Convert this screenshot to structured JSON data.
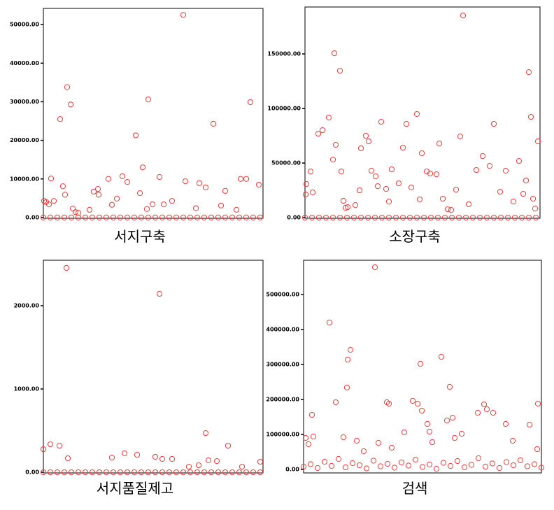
{
  "chart_data": [
    {
      "type": "scatter",
      "title": "서지구축",
      "color": "#f03c3c",
      "x": [
        1,
        4,
        8,
        11,
        15,
        24,
        28,
        31,
        34,
        39,
        42,
        46,
        50,
        66,
        72,
        78,
        79,
        93,
        98,
        105,
        113,
        120,
        132,
        138,
        142,
        148,
        150,
        156,
        166,
        172,
        184,
        200,
        203,
        223,
        232,
        243,
        260,
        282,
        290,
        296,
        308,
        276,
        254,
        218,
        0,
        10,
        20,
        30,
        40,
        50,
        60,
        70,
        80,
        90,
        100,
        110,
        120,
        130,
        140,
        150,
        160,
        170,
        180,
        190,
        200,
        210,
        220,
        230,
        240,
        250,
        260,
        270,
        280,
        290,
        300,
        310
      ],
      "values": [
        4300,
        4000,
        3400,
        10100,
        4300,
        25500,
        8100,
        5900,
        33800,
        29300,
        2300,
        1400,
        1200,
        2000,
        6700,
        7400,
        5900,
        10000,
        3300,
        4900,
        10700,
        9200,
        21300,
        6300,
        13000,
        2200,
        30600,
        3400,
        10500,
        3400,
        4300,
        52500,
        9400,
        8900,
        7800,
        24300,
        6900,
        10000,
        10000,
        29900,
        8500,
        2000,
        3100,
        2400,
        0,
        0,
        0,
        0,
        0,
        0,
        0,
        0,
        0,
        0,
        0,
        0,
        0,
        0,
        0,
        0,
        0,
        0,
        0,
        0,
        0,
        0,
        0,
        0,
        0,
        0,
        0,
        0,
        0,
        0,
        0,
        0
      ],
      "xlim": [
        0,
        314
      ],
      "ylim": [
        -200,
        54200
      ],
      "yticks": [
        {
          "value": 0,
          "label": "0.00"
        },
        {
          "value": 10000,
          "label": "10000.00"
        },
        {
          "value": 20000,
          "label": "20000.00"
        },
        {
          "value": 30000,
          "label": "30000.00"
        },
        {
          "value": 40000,
          "label": "40000.00"
        },
        {
          "value": 50000,
          "label": "50000.00"
        }
      ]
    },
    {
      "type": "scatter",
      "title": "소장구축",
      "color": "#f03c3c",
      "x": [
        1,
        2,
        8,
        11,
        19,
        25,
        34,
        40,
        42,
        44,
        50,
        52,
        55,
        58,
        61,
        72,
        78,
        80,
        87,
        91,
        95,
        101,
        104,
        109,
        116,
        120,
        124,
        134,
        140,
        145,
        152,
        160,
        164,
        167,
        174,
        179,
        188,
        192,
        197,
        204,
        209,
        216,
        222,
        226,
        234,
        245,
        254,
        264,
        270,
        279,
        287,
        298,
        306,
        316,
        320,
        323,
        326,
        333,
        329,
        312,
        0,
        10,
        20,
        30,
        40,
        50,
        60,
        70,
        80,
        90,
        100,
        110,
        120,
        130,
        140,
        150,
        160,
        170,
        180,
        190,
        200,
        210,
        220,
        230,
        240,
        250,
        260,
        270,
        280,
        290,
        300,
        310,
        320,
        330
      ],
      "values": [
        21200,
        30800,
        42300,
        23100,
        76900,
        80100,
        91700,
        53200,
        150600,
        66700,
        134600,
        42300,
        15400,
        9000,
        9600,
        11500,
        25000,
        63500,
        75000,
        69900,
        43000,
        37800,
        28800,
        87800,
        26300,
        14700,
        44200,
        31400,
        64100,
        85900,
        27600,
        94900,
        16700,
        59000,
        42300,
        40400,
        39700,
        67900,
        17300,
        7700,
        7000,
        25600,
        74400,
        185200,
        12200,
        43600,
        56400,
        47400,
        85900,
        23700,
        42900,
        14700,
        51900,
        34000,
        133300,
        92300,
        17300,
        69900,
        8300,
        21800,
        0,
        0,
        0,
        0,
        0,
        0,
        0,
        0,
        0,
        0,
        0,
        0,
        0,
        0,
        0,
        0,
        0,
        0,
        0,
        0,
        0,
        0,
        0,
        0,
        0,
        0,
        0,
        0,
        0,
        0,
        0,
        0,
        0,
        0
      ],
      "xlim": [
        0,
        336
      ],
      "ylim": [
        -600,
        193000
      ],
      "yticks": [
        {
          "value": 0,
          "label": "0.00"
        },
        {
          "value": 50000,
          "label": "50000.00"
        },
        {
          "value": 100000,
          "label": "100000.00"
        },
        {
          "value": 150000,
          "label": "150000.00"
        }
      ]
    },
    {
      "type": "scatter",
      "title": "서지품질제고",
      "color": "#f03c3c",
      "x": [
        0,
        10,
        23,
        33,
        35,
        98,
        116,
        134,
        160,
        166,
        170,
        184,
        208,
        222,
        232,
        236,
        248,
        264,
        284,
        310,
        0,
        10,
        20,
        30,
        40,
        50,
        60,
        70,
        80,
        90,
        100,
        110,
        120,
        130,
        140,
        150,
        160,
        170,
        180,
        190,
        200,
        210,
        220,
        230,
        240,
        250,
        260,
        270,
        280,
        290,
        300,
        310
      ],
      "values": [
        277,
        336,
        319,
        2454,
        168,
        176,
        227,
        210,
        185,
        2143,
        160,
        160,
        67,
        84,
        470,
        143,
        134,
        319,
        67,
        126,
        0,
        0,
        0,
        0,
        0,
        0,
        0,
        0,
        0,
        0,
        0,
        0,
        0,
        0,
        0,
        0,
        0,
        0,
        0,
        0,
        0,
        0,
        0,
        0,
        0,
        0,
        0,
        0,
        0,
        0,
        0,
        0
      ],
      "xlim": [
        0,
        314
      ],
      "ylim": [
        -8,
        2546
      ],
      "yticks": [
        {
          "value": 0,
          "label": "0.00"
        },
        {
          "value": 1000,
          "label": "1000.00"
        },
        {
          "value": 2000,
          "label": "2000.00"
        }
      ]
    },
    {
      "type": "scatter",
      "title": "검색",
      "color": "#f03c3c",
      "x": [
        3,
        7,
        12,
        14,
        37,
        46,
        57,
        63,
        67,
        62,
        76,
        102,
        107,
        119,
        122,
        144,
        156,
        163,
        169,
        167,
        177,
        180,
        184,
        197,
        205,
        209,
        213,
        216,
        249,
        258,
        262,
        271,
        289,
        299,
        323,
        335,
        334,
        226,
        126,
        86,
        0,
        10,
        20,
        30,
        40,
        50,
        60,
        70,
        80,
        90,
        100,
        110,
        120,
        130,
        140,
        150,
        160,
        170,
        180,
        190,
        200,
        210,
        220,
        230,
        240,
        250,
        260,
        270,
        280,
        290,
        300,
        310,
        320,
        330,
        340
      ],
      "values": [
        90000,
        72000,
        156000,
        94000,
        420000,
        192000,
        92000,
        314000,
        342000,
        234000,
        82000,
        578000,
        76000,
        192000,
        188000,
        106000,
        196000,
        188000,
        168000,
        302000,
        130000,
        108000,
        78000,
        322000,
        140000,
        236000,
        148000,
        90000,
        162000,
        186000,
        172000,
        162000,
        130000,
        82000,
        128000,
        188000,
        58000,
        102000,
        62000,
        52000,
        8000,
        15000,
        4000,
        22000,
        10000,
        30000,
        6000,
        18000,
        12000,
        3000,
        25000,
        9000,
        16000,
        5000,
        20000,
        11000,
        28000,
        7000,
        14000,
        2000,
        19000,
        10000,
        24000,
        6000,
        13000,
        32000,
        8000,
        17000,
        4000,
        21000,
        12000,
        26000,
        9000,
        15000,
        5000
      ],
      "xlim": [
        0,
        340
      ],
      "ylim": [
        -10000,
        598000
      ],
      "yticks": [
        {
          "value": 0,
          "label": "0.00"
        },
        {
          "value": 100000,
          "label": "100000.00"
        },
        {
          "value": 200000,
          "label": "200000.00"
        },
        {
          "value": 300000,
          "label": "300000.00"
        },
        {
          "value": 400000,
          "label": "400000.00"
        },
        {
          "value": 500000,
          "label": "500000.00"
        }
      ]
    }
  ]
}
